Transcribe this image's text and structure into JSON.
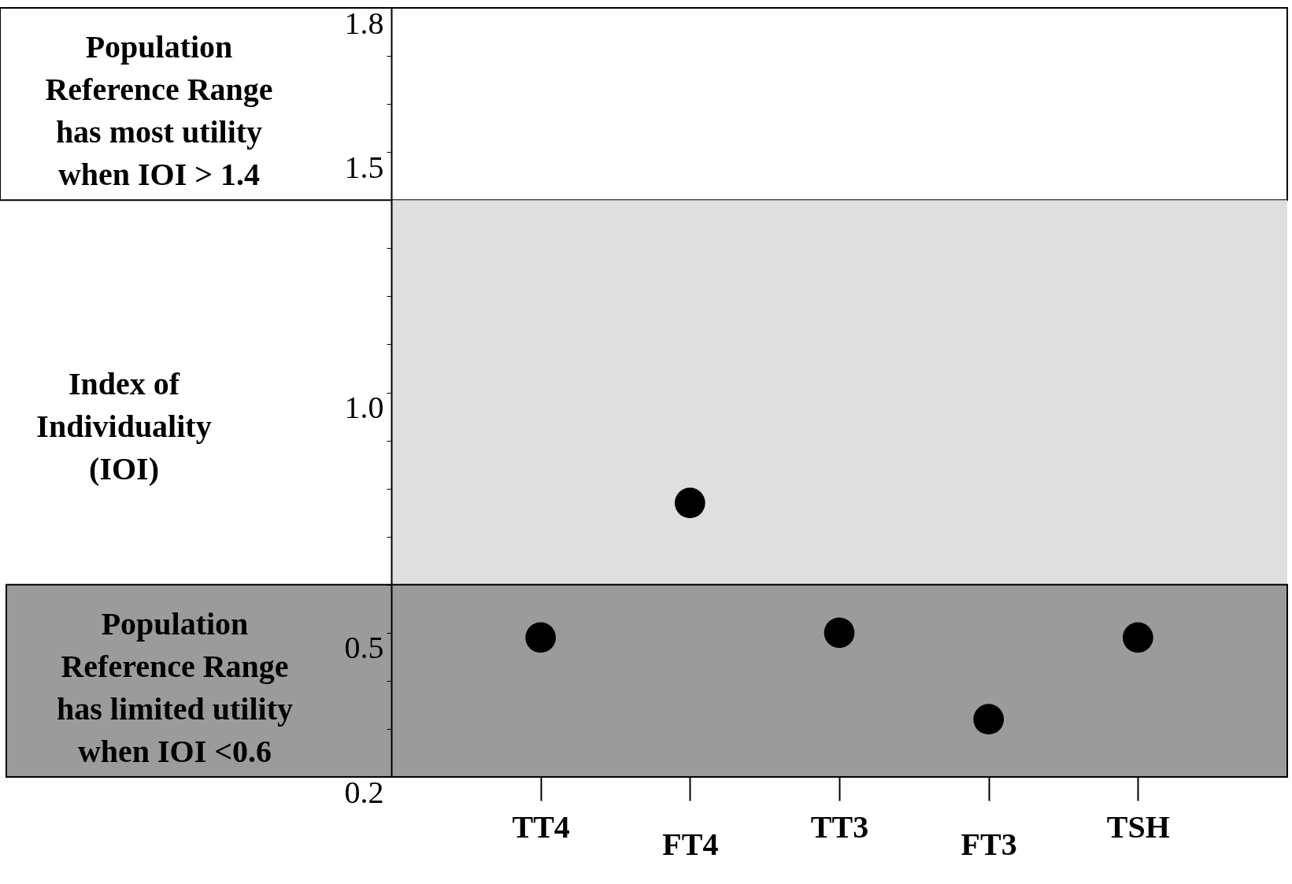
{
  "chart_data": {
    "type": "scatter",
    "ylabel": "Index of Individuality (IOI)",
    "categories": [
      "TT4",
      "FT4",
      "TT3",
      "FT3",
      "TSH"
    ],
    "values": [
      0.49,
      0.77,
      0.5,
      0.32,
      0.49
    ],
    "color": "#000000",
    "marker": "circle",
    "ylim": [
      0.2,
      1.8
    ],
    "yticks": [
      0.2,
      {
        "value": 0.3,
        "label": null
      },
      {
        "value": 0.4,
        "label": null
      },
      0.5,
      {
        "value": 0.6,
        "label": null
      },
      {
        "value": 0.7,
        "label": null
      },
      {
        "value": 0.8,
        "label": null
      },
      {
        "value": 0.9,
        "label": null
      },
      {
        "value": 1.0,
        "label": "1.0"
      },
      {
        "value": 1.1,
        "label": null
      },
      {
        "value": 1.2,
        "label": null
      },
      {
        "value": 1.3,
        "label": null
      },
      {
        "value": 1.4,
        "label": null
      },
      1.5,
      {
        "value": 1.6,
        "label": null
      },
      {
        "value": 1.7,
        "label": null
      },
      1.8
    ],
    "bands": [
      {
        "axis": "y",
        "from": 1.4,
        "to": 1.8,
        "color": "#ffffff",
        "label": "Population\nReference Range\nhas most utility\nwhen IOI > 1.4"
      },
      {
        "axis": "y",
        "from": 0.6,
        "to": 1.4,
        "color": "#dfdfdf"
      },
      {
        "axis": "y",
        "from": 0.2,
        "to": 0.6,
        "color": "#9b9b9b",
        "label": "Population\nReference Range\nhas limited utility\nwhen IOI <0.6"
      }
    ]
  }
}
